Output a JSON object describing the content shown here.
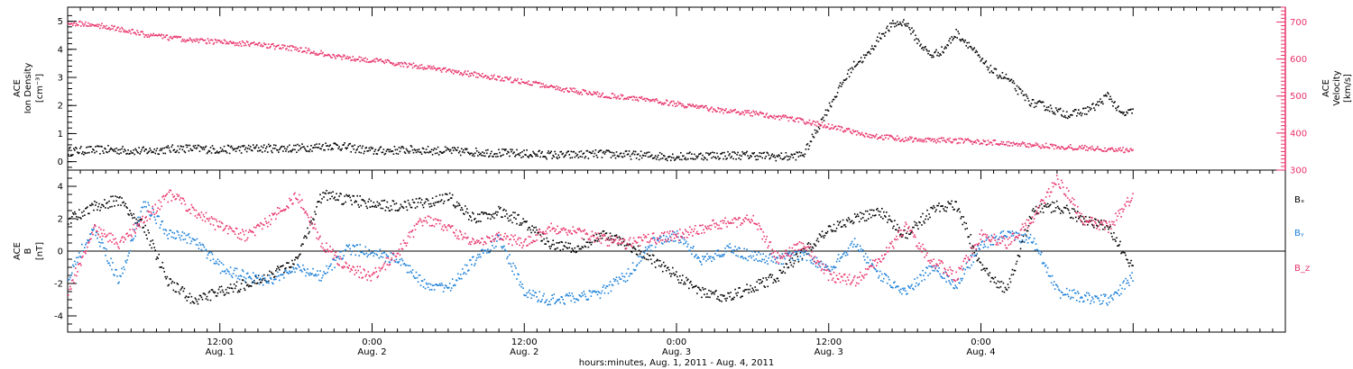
{
  "chart_data": [
    {
      "type": "scatter",
      "panel": "top",
      "ylabel_lines": [
        "ACE",
        "Ion Density"
      ],
      "yunit_left": "[cm⁻³]",
      "ylim": [
        -0.3,
        5.5
      ],
      "yticks": [
        "0",
        "1",
        "2",
        "3",
        "4",
        "5"
      ],
      "right_axis": {
        "label_lines": [
          "ACE",
          "Velocity"
        ],
        "unit": "[km/s]",
        "ylim": [
          300,
          740
        ],
        "yticks": [
          "300",
          "400",
          "500",
          "600",
          "700"
        ],
        "color": "#e8336b"
      },
      "series": [
        {
          "color": "#000000",
          "axis": "left",
          "x": [
            0,
            3,
            6,
            9,
            12,
            15,
            18,
            21,
            24,
            27,
            30,
            33,
            36,
            39,
            42,
            45,
            48,
            51,
            54,
            56,
            57,
            58,
            60,
            61,
            62,
            63,
            64,
            65,
            66,
            67,
            68,
            69,
            70,
            71,
            72,
            73,
            74,
            75,
            76,
            77,
            78,
            79,
            80,
            81,
            82,
            83,
            84
          ],
          "y": [
            0.4,
            0.45,
            0.4,
            0.5,
            0.45,
            0.5,
            0.5,
            0.6,
            0.4,
            0.45,
            0.4,
            0.35,
            0.3,
            0.25,
            0.3,
            0.25,
            0.2,
            0.25,
            0.25,
            0.2,
            0.2,
            0.3,
            2.0,
            2.8,
            3.5,
            3.8,
            4.5,
            4.9,
            5.0,
            4.3,
            3.8,
            4.0,
            4.6,
            4.2,
            3.6,
            3.2,
            3.0,
            2.5,
            2.1,
            2.0,
            1.8,
            1.7,
            1.8,
            2.0,
            2.4,
            1.7,
            1.8
          ]
        },
        {
          "color": "#e8336b",
          "axis": "right",
          "x": [
            0,
            3,
            6,
            9,
            12,
            15,
            18,
            21,
            24,
            27,
            30,
            33,
            36,
            39,
            42,
            45,
            48,
            51,
            54,
            57,
            60,
            63,
            66,
            69,
            72,
            75,
            78,
            81,
            84
          ],
          "y": [
            700,
            690,
            668,
            655,
            648,
            640,
            630,
            610,
            598,
            585,
            570,
            555,
            540,
            520,
            505,
            495,
            480,
            465,
            455,
            440,
            420,
            395,
            385,
            382,
            378,
            372,
            365,
            360,
            355
          ]
        }
      ]
    },
    {
      "type": "scatter",
      "panel": "bottom",
      "ylabel_lines": [
        "ACE",
        "B"
      ],
      "yunit_left": "[nT]",
      "ylim": [
        -5,
        5
      ],
      "yticks": [
        "-4",
        "-2",
        "0",
        "2",
        "4"
      ],
      "zero_line": true,
      "series": [
        {
          "name": "Bₓ",
          "color": "#000000",
          "x": [
            0,
            2,
            4,
            6,
            8,
            10,
            12,
            14,
            16,
            18,
            20,
            22,
            24,
            26,
            28,
            30,
            32,
            34,
            36,
            38,
            40,
            42,
            44,
            46,
            48,
            50,
            52,
            54,
            56,
            58,
            60,
            62,
            64,
            66,
            68,
            70,
            72,
            74,
            76,
            78,
            80,
            82,
            84
          ],
          "y": [
            2.0,
            2.8,
            3.2,
            1.5,
            -2.0,
            -3.0,
            -2.5,
            -2.0,
            -1.5,
            -0.5,
            3.5,
            3.2,
            3.0,
            2.8,
            3.0,
            3.4,
            2.0,
            2.5,
            1.8,
            0.5,
            0.2,
            1.0,
            0.5,
            -0.5,
            -1.5,
            -2.5,
            -2.8,
            -2.2,
            -1.5,
            0.0,
            1.5,
            2.0,
            2.5,
            1.0,
            2.5,
            3.0,
            -1.0,
            -2.5,
            2.5,
            2.8,
            2.0,
            1.5,
            -1.0
          ]
        },
        {
          "name": "Bᵧ",
          "color": "#1a7fd8",
          "x": [
            0,
            2,
            4,
            6,
            8,
            10,
            12,
            14,
            16,
            18,
            20,
            22,
            24,
            26,
            28,
            30,
            32,
            34,
            36,
            38,
            40,
            42,
            44,
            46,
            48,
            50,
            52,
            54,
            56,
            58,
            60,
            62,
            64,
            66,
            68,
            70,
            72,
            74,
            76,
            78,
            80,
            82,
            84
          ],
          "y": [
            -1.5,
            1.5,
            -1.8,
            3.0,
            1.0,
            0.8,
            -1.0,
            -1.5,
            -1.8,
            -1.0,
            -1.5,
            0.2,
            0.0,
            -0.5,
            -2.0,
            -2.2,
            -0.5,
            0.8,
            -2.5,
            -3.0,
            -2.8,
            -2.5,
            -1.5,
            0.5,
            1.0,
            -0.5,
            0.2,
            -0.3,
            -0.5,
            -0.2,
            -1.0,
            0.5,
            -1.5,
            -2.5,
            -1.0,
            -2.0,
            0.5,
            1.0,
            0.8,
            -2.5,
            -2.8,
            -3.0,
            -1.5
          ]
        },
        {
          "name": "B_z",
          "color": "#e8336b",
          "x": [
            0,
            2,
            4,
            6,
            8,
            10,
            12,
            14,
            16,
            18,
            20,
            22,
            24,
            26,
            28,
            30,
            32,
            34,
            36,
            38,
            40,
            42,
            44,
            46,
            48,
            50,
            52,
            54,
            56,
            58,
            60,
            62,
            64,
            66,
            68,
            70,
            72,
            74,
            76,
            78,
            80,
            82,
            84
          ],
          "y": [
            -2.5,
            1.5,
            0.5,
            2.0,
            3.5,
            2.5,
            1.5,
            1.0,
            2.0,
            3.5,
            0.5,
            -1.0,
            -1.5,
            0.0,
            2.0,
            1.5,
            0.5,
            1.0,
            0.5,
            1.5,
            1.2,
            0.8,
            0.5,
            0.8,
            1.0,
            1.5,
            1.8,
            2.0,
            -0.5,
            0.5,
            -1.5,
            -1.8,
            -0.5,
            1.5,
            -0.5,
            -1.5,
            1.0,
            0.5,
            2.0,
            4.5,
            2.0,
            1.5,
            3.5
          ]
        }
      ]
    }
  ],
  "xaxis": {
    "range_hours": [
      0,
      96
    ],
    "ticks": [
      {
        "hours": 12,
        "top": "12:00",
        "bottom": "Aug. 1"
      },
      {
        "hours": 24,
        "top": "0:00",
        "bottom": "Aug. 2"
      },
      {
        "hours": 36,
        "top": "12:00",
        "bottom": "Aug. 2"
      },
      {
        "hours": 48,
        "top": "0:00",
        "bottom": "Aug. 3"
      },
      {
        "hours": 60,
        "top": "12:00",
        "bottom": "Aug. 3"
      },
      {
        "hours": 72,
        "top": "0:00",
        "bottom": "Aug. 4"
      }
    ],
    "label": "hours:minutes, Aug.  1, 2011 - Aug.  4, 2011"
  }
}
